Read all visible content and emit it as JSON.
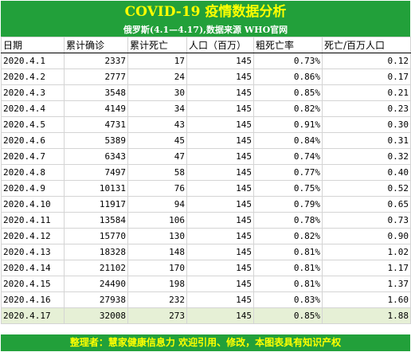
{
  "title": "COVID-19 疫情数据分析",
  "subtitle": "俄罗斯(4.1—4.17),数据来源 WHO官网",
  "columns": [
    "日期",
    "累计确诊",
    "累计死亡",
    "人口（百万）",
    "粗死亡率",
    "死亡/百万人口"
  ],
  "rows": [
    [
      "2020.4.1",
      "2337",
      "17",
      "145",
      "0.73%",
      "0.12"
    ],
    [
      "2020.4.2",
      "2777",
      "24",
      "145",
      "0.86%",
      "0.17"
    ],
    [
      "2020.4.3",
      "3548",
      "30",
      "145",
      "0.85%",
      "0.21"
    ],
    [
      "2020.4.4",
      "4149",
      "34",
      "145",
      "0.82%",
      "0.23"
    ],
    [
      "2020.4.5",
      "4731",
      "43",
      "145",
      "0.91%",
      "0.30"
    ],
    [
      "2020.4.6",
      "5389",
      "45",
      "145",
      "0.84%",
      "0.31"
    ],
    [
      "2020.4.7",
      "6343",
      "47",
      "145",
      "0.74%",
      "0.32"
    ],
    [
      "2020.4.8",
      "7497",
      "58",
      "145",
      "0.77%",
      "0.40"
    ],
    [
      "2020.4.9",
      "10131",
      "76",
      "145",
      "0.75%",
      "0.52"
    ],
    [
      "2020.4.10",
      "11917",
      "94",
      "145",
      "0.79%",
      "0.65"
    ],
    [
      "2020.4.11",
      "13584",
      "106",
      "145",
      "0.78%",
      "0.73"
    ],
    [
      "2020.4.12",
      "15770",
      "130",
      "145",
      "0.82%",
      "0.90"
    ],
    [
      "2020.4.13",
      "18328",
      "148",
      "145",
      "0.81%",
      "1.02"
    ],
    [
      "2020.4.14",
      "21102",
      "170",
      "145",
      "0.81%",
      "1.17"
    ],
    [
      "2020.4.15",
      "24490",
      "198",
      "145",
      "0.81%",
      "1.37"
    ],
    [
      "2020.4.16",
      "27938",
      "232",
      "145",
      "0.83%",
      "1.60"
    ],
    [
      "2020.4.17",
      "32008",
      "273",
      "145",
      "0.85%",
      "1.88"
    ]
  ],
  "highlighted_row": "2020.4.17",
  "footer": "整理者：慧家健康信息力  欢迎引用、修改，本图表具有知识产权",
  "colors": {
    "header_bg": "#22a03a",
    "title_text": "#ffff00",
    "subtitle_text": "#ffffff",
    "highlight_row": "#e6f0d6"
  }
}
